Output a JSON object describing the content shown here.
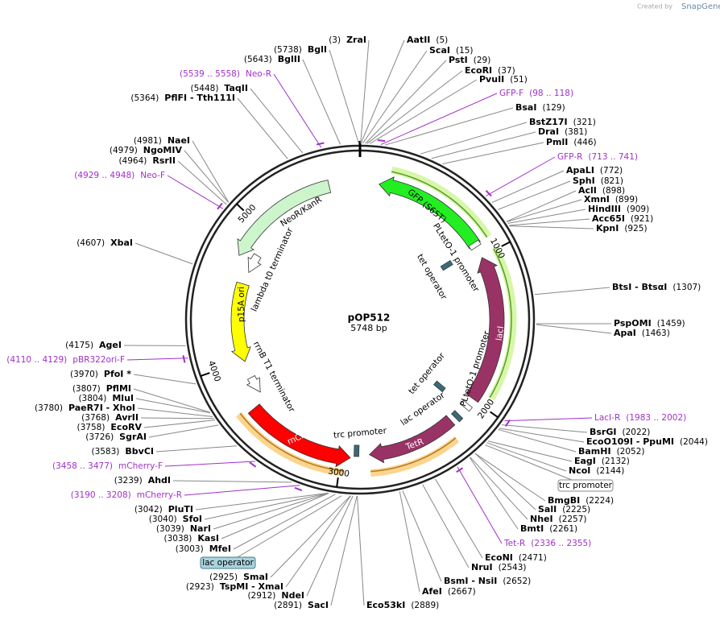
{
  "title": "pOP512",
  "subtitle": "5748 bp",
  "watermark": {
    "prefix": "Created by",
    "brand": "SnapGene"
  },
  "ticks": [
    "1000",
    "2000",
    "3000",
    "4000",
    "5000"
  ],
  "features": [
    "GFP (S65T)",
    "NeoR/KanR",
    "lambda t0 terminator",
    "p15A ori",
    "rrnB T1 terminator",
    "mCherry",
    "trc promoter",
    "TetR",
    "lac operator",
    "lacI",
    "PLtetO-1 promoter",
    "PLtetO-1 promoter",
    "tet operator",
    "tet operator"
  ],
  "callouts": [
    "trc promoter",
    "lac operator"
  ],
  "sites": [
    {
      "name": "ZraI",
      "pos": "(3)"
    },
    {
      "name": "AatII",
      "pos": "(5)"
    },
    {
      "name": "ScaI",
      "pos": "(15)"
    },
    {
      "name": "PstI",
      "pos": "(29)"
    },
    {
      "name": "EcoRI",
      "pos": "(37)"
    },
    {
      "name": "PvuII",
      "pos": "(51)"
    },
    {
      "name": "BsaI",
      "pos": "(129)"
    },
    {
      "name": "BstZ17I",
      "pos": "(321)"
    },
    {
      "name": "DraI",
      "pos": "(381)"
    },
    {
      "name": "PmlI",
      "pos": "(446)"
    },
    {
      "name": "ApaLI",
      "pos": "(772)"
    },
    {
      "name": "SphI",
      "pos": "(821)"
    },
    {
      "name": "AclI",
      "pos": "(898)"
    },
    {
      "name": "XmnI",
      "pos": "(899)"
    },
    {
      "name": "HindIII",
      "pos": "(909)"
    },
    {
      "name": "Acc65I",
      "pos": "(921)"
    },
    {
      "name": "KpnI",
      "pos": "(925)"
    },
    {
      "name": "BtsI - BtsαI",
      "pos": "(1307)"
    },
    {
      "name": "PspOMI",
      "pos": "(1459)"
    },
    {
      "name": "ApaI",
      "pos": "(1463)"
    },
    {
      "name": "BsrGI",
      "pos": "(2022)"
    },
    {
      "name": "EcoO109I - PpuMI",
      "pos": "(2044)"
    },
    {
      "name": "BamHI",
      "pos": "(2052)"
    },
    {
      "name": "EagI",
      "pos": "(2132)"
    },
    {
      "name": "NcoI",
      "pos": "(2144)"
    },
    {
      "name": "BmgBI",
      "pos": "(2224)"
    },
    {
      "name": "SalI",
      "pos": "(2225)"
    },
    {
      "name": "NheI",
      "pos": "(2257)"
    },
    {
      "name": "BmtI",
      "pos": "(2261)"
    },
    {
      "name": "EcoNI",
      "pos": "(2471)"
    },
    {
      "name": "NruI",
      "pos": "(2543)"
    },
    {
      "name": "BsmI - NsiI",
      "pos": "(2652)"
    },
    {
      "name": "AfeI",
      "pos": "(2667)"
    },
    {
      "name": "Eco53kI",
      "pos": "(2889)"
    },
    {
      "name": "SacI",
      "pos": "(2891)"
    },
    {
      "name": "NdeI",
      "pos": "(2912)"
    },
    {
      "name": "TspMI - XmaI",
      "pos": "(2923)"
    },
    {
      "name": "SmaI",
      "pos": "(2925)"
    },
    {
      "name": "MfeI",
      "pos": "(3003)"
    },
    {
      "name": "KasI",
      "pos": "(3038)"
    },
    {
      "name": "NarI",
      "pos": "(3039)"
    },
    {
      "name": "SfoI",
      "pos": "(3040)"
    },
    {
      "name": "PluTI",
      "pos": "(3042)"
    },
    {
      "name": "AhdI",
      "pos": "(3239)"
    },
    {
      "name": "BbvCI",
      "pos": "(3583)"
    },
    {
      "name": "SgrAI",
      "pos": "(3726)"
    },
    {
      "name": "EcoRV",
      "pos": "(3758)"
    },
    {
      "name": "AvrII",
      "pos": "(3768)"
    },
    {
      "name": "PaeR7I - XhoI",
      "pos": "(3780)"
    },
    {
      "name": "MluI",
      "pos": "(3804)"
    },
    {
      "name": "PflMI",
      "pos": "(3807)"
    },
    {
      "name": "PfoI *",
      "pos": "(3970)"
    },
    {
      "name": "AgeI",
      "pos": "(4175)"
    },
    {
      "name": "XbaI",
      "pos": "(4607)"
    },
    {
      "name": "RsrII",
      "pos": "(4964)"
    },
    {
      "name": "NgoMIV",
      "pos": "(4979)"
    },
    {
      "name": "NaeI",
      "pos": "(4981)"
    },
    {
      "name": "PflFI - Tth111I",
      "pos": "(5364)"
    },
    {
      "name": "TaqII",
      "pos": "(5448)"
    },
    {
      "name": "BglII",
      "pos": "(5643)"
    },
    {
      "name": "BglI",
      "pos": "(5738)"
    }
  ],
  "primers": [
    {
      "name": "Neo-R",
      "range": "(5539 .. 5558)"
    },
    {
      "name": "GFP-F",
      "range": "(98 .. 118)"
    },
    {
      "name": "GFP-R",
      "range": "(713 .. 741)"
    },
    {
      "name": "LacI-R",
      "range": "(1983 .. 2002)"
    },
    {
      "name": "Tet-R",
      "range": "(2336 .. 2355)"
    },
    {
      "name": "mCherry-R",
      "range": "(3190 .. 3208)"
    },
    {
      "name": "mCherry-F",
      "range": "(3458 .. 3477)"
    },
    {
      "name": "pBR322ori-F",
      "range": "(4110 .. 4129)"
    },
    {
      "name": "Neo-F",
      "range": "(4929 .. 4948)"
    }
  ]
}
